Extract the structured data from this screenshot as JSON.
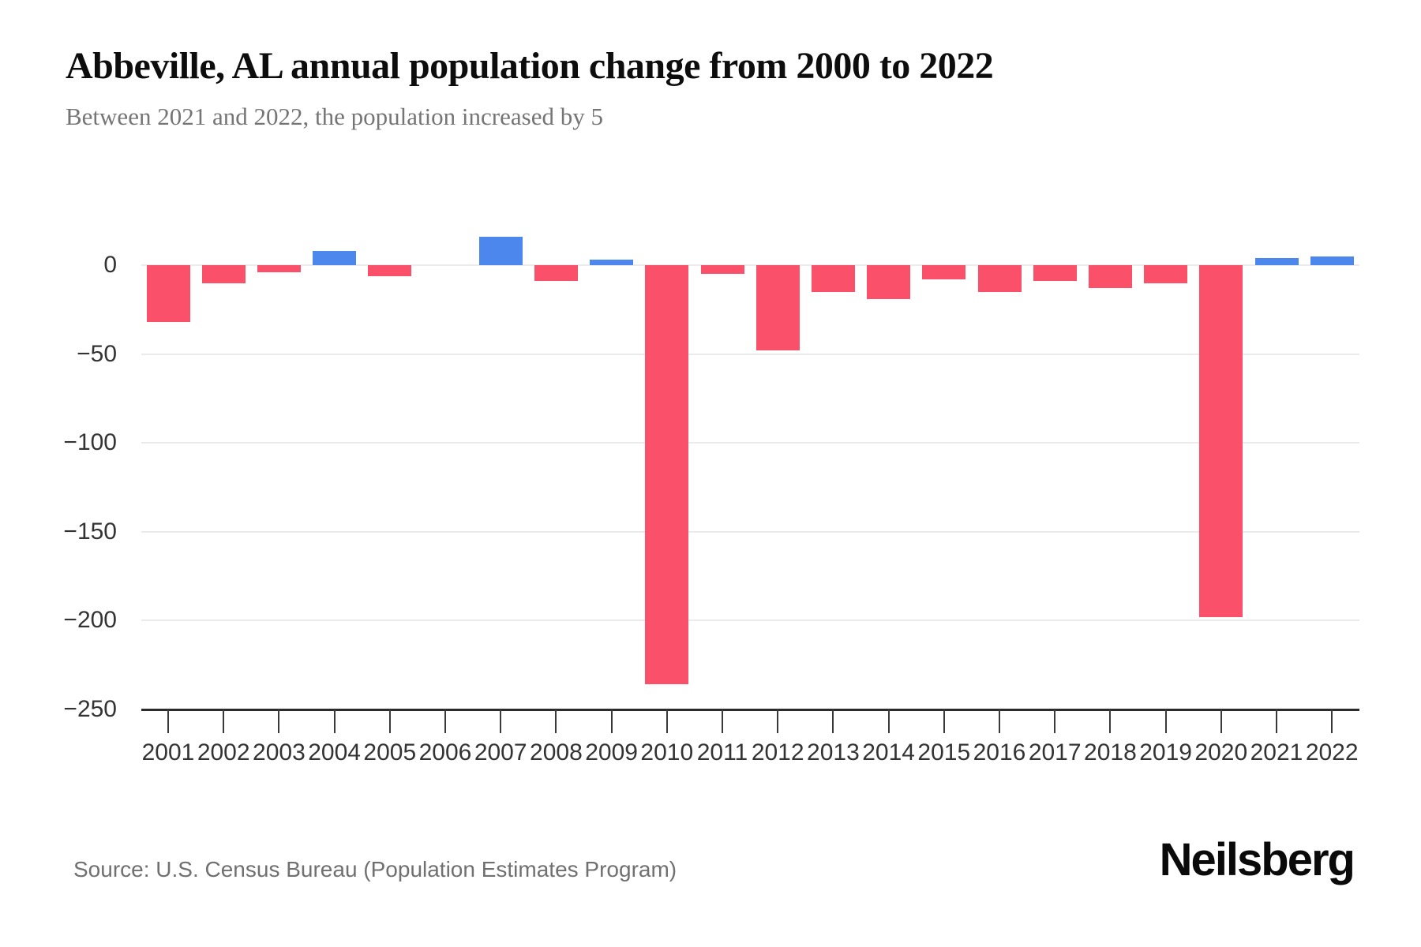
{
  "header": {
    "title": "Abbeville, AL annual population change from 2000 to 2022",
    "subtitle": "Between 2021 and 2022, the population increased by 5"
  },
  "chart_data": {
    "type": "bar",
    "title": "Abbeville, AL annual population change from 2000 to 2022",
    "subtitle": "Between 2021 and 2022, the population increased by 5",
    "categories": [
      "2001",
      "2002",
      "2003",
      "2004",
      "2005",
      "2006",
      "2007",
      "2008",
      "2009",
      "2010",
      "2011",
      "2012",
      "2013",
      "2014",
      "2015",
      "2016",
      "2017",
      "2018",
      "2019",
      "2020",
      "2021",
      "2022"
    ],
    "values": [
      -32,
      -10,
      -4,
      8,
      -6,
      0,
      16,
      -9,
      3,
      -236,
      -5,
      -48,
      -15,
      -19,
      -8,
      -15,
      -9,
      -13,
      -10,
      -198,
      4,
      5
    ],
    "xlabel": "",
    "ylabel": "",
    "ylim": [
      -250,
      20
    ],
    "yticks": [
      0,
      -50,
      -100,
      -150,
      -200,
      -250
    ],
    "grid": "horizontal",
    "legend_position": "none",
    "colors": {
      "increase": "#4b87ed",
      "decrease": "#fb5069",
      "gridline": "#ebebeb",
      "axis": "#2b2b2b",
      "tick_text": "#333333"
    }
  },
  "footer": {
    "source": "Source: U.S. Census Bureau (Population Estimates Program)",
    "logo": "Neilsberg"
  }
}
